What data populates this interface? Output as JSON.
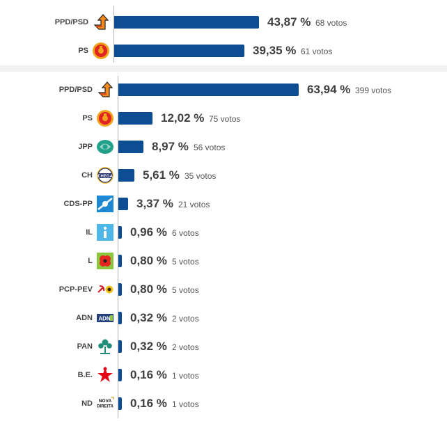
{
  "chart_data": [
    {
      "type": "bar",
      "orientation": "horizontal",
      "categories": [
        "PPD/PSD",
        "PS"
      ],
      "values": [
        43.87,
        39.35
      ],
      "percent_labels": [
        "43,87 %",
        "39,35 %"
      ],
      "vote_labels": [
        "68 votos",
        "61 votos"
      ],
      "logos": [
        "psd-arrow-icon",
        "ps-fist-icon"
      ],
      "xlim": [
        0,
        100
      ],
      "grid": false,
      "colors": {
        "bar": "#0d4d93"
      }
    },
    {
      "type": "bar",
      "orientation": "horizontal",
      "categories": [
        "PPD/PSD",
        "PS",
        "JPP",
        "CH",
        "CDS-PP",
        "IL",
        "L",
        "PCP-PEV",
        "ADN",
        "PAN",
        "B.E.",
        "ND"
      ],
      "values": [
        63.94,
        12.02,
        8.97,
        5.61,
        3.37,
        0.96,
        0.8,
        0.8,
        0.32,
        0.32,
        0.16,
        0.16
      ],
      "percent_labels": [
        "63,94 %",
        "12,02 %",
        "8,97 %",
        "5,61 %",
        "3,37 %",
        "0,96 %",
        "0,80 %",
        "0,80 %",
        "0,32 %",
        "0,32 %",
        "0,16 %",
        "0,16 %"
      ],
      "vote_labels": [
        "399 votos",
        "75 votos",
        "56 votos",
        "35 votos",
        "21 votos",
        "6 votos",
        "5 votos",
        "5 votos",
        "2 votos",
        "2 votos",
        "1 votos",
        "1 votos"
      ],
      "logos": [
        "psd-arrow-icon",
        "ps-fist-icon",
        "jpp-icon",
        "chega-icon",
        "cds-icon",
        "il-icon",
        "livre-poppy-icon",
        "pcp-pev-icon",
        "adn-icon",
        "pan-tree-icon",
        "be-star-icon",
        "nova-direita-icon"
      ],
      "xlim": [
        0,
        100
      ],
      "grid": false,
      "colors": {
        "bar": "#0d4d93"
      }
    }
  ]
}
